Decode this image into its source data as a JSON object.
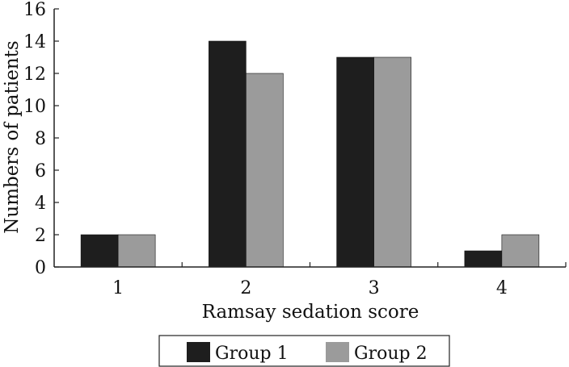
{
  "chart_data": {
    "type": "bar",
    "categories": [
      "1",
      "2",
      "3",
      "4"
    ],
    "series": [
      {
        "name": "Group 1",
        "values": [
          2,
          14,
          13,
          1
        ],
        "color": "#1e1e1e"
      },
      {
        "name": "Group 2",
        "values": [
          2,
          12,
          13,
          2
        ],
        "color": "#9b9b9b"
      }
    ],
    "xlabel": "Ramsay sedation score",
    "ylabel": "Numbers of patients",
    "ylim": [
      0,
      16
    ],
    "yticks": [
      "0",
      "2",
      "4",
      "6",
      "8",
      "10",
      "12",
      "14",
      "16"
    ],
    "grid": false,
    "legend_position": "bottom"
  }
}
